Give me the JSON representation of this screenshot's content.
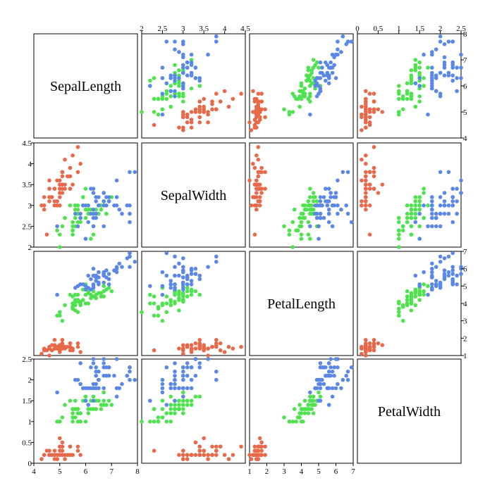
{
  "chart_data": {
    "type": "scatter-matrix",
    "title": "",
    "variables": [
      "SepalLength",
      "SepalWidth",
      "PetalLength",
      "PetalWidth"
    ],
    "axes": {
      "SepalLength": {
        "range": [
          4,
          8
        ],
        "ticks": [
          4,
          5,
          6,
          7,
          8
        ],
        "tick_labels": [
          "4",
          "5",
          "6",
          "7",
          "8"
        ]
      },
      "SepalWidth": {
        "range": [
          2,
          4.5
        ],
        "ticks": [
          2,
          2.5,
          3,
          3.5,
          4,
          4.5
        ],
        "tick_labels": [
          "2",
          "2.5",
          "3",
          "3.5",
          "4",
          "4.5"
        ]
      },
      "PetalLength": {
        "range": [
          1,
          7
        ],
        "ticks": [
          1,
          2,
          3,
          4,
          5,
          6,
          7
        ],
        "tick_labels": [
          "1",
          "2",
          "3",
          "4",
          "5",
          "6",
          "7"
        ]
      },
      "PetalWidth": {
        "range": [
          0,
          2.5
        ],
        "ticks": [
          0,
          0.5,
          1,
          1.5,
          2,
          2.5
        ],
        "tick_labels": [
          "0",
          "0.5",
          "1",
          "1.5",
          "2",
          "2.5"
        ]
      }
    },
    "grid": false,
    "legend": "none",
    "series": [
      {
        "color": "#e8684a",
        "points": [
          [
            5.1,
            3.5,
            1.4,
            0.2
          ],
          [
            4.9,
            3.0,
            1.4,
            0.2
          ],
          [
            4.7,
            3.2,
            1.3,
            0.2
          ],
          [
            4.6,
            3.1,
            1.5,
            0.2
          ],
          [
            5.0,
            3.6,
            1.4,
            0.2
          ],
          [
            5.4,
            3.9,
            1.7,
            0.4
          ],
          [
            4.6,
            3.4,
            1.4,
            0.3
          ],
          [
            5.0,
            3.4,
            1.5,
            0.2
          ],
          [
            4.4,
            2.9,
            1.4,
            0.2
          ],
          [
            4.9,
            3.1,
            1.5,
            0.1
          ],
          [
            5.4,
            3.7,
            1.5,
            0.2
          ],
          [
            4.8,
            3.4,
            1.6,
            0.2
          ],
          [
            4.8,
            3.0,
            1.4,
            0.1
          ],
          [
            4.3,
            3.0,
            1.1,
            0.1
          ],
          [
            5.8,
            4.0,
            1.2,
            0.2
          ],
          [
            5.7,
            4.4,
            1.5,
            0.4
          ],
          [
            5.4,
            3.9,
            1.3,
            0.4
          ],
          [
            5.1,
            3.5,
            1.4,
            0.3
          ],
          [
            5.7,
            3.8,
            1.7,
            0.3
          ],
          [
            5.1,
            3.8,
            1.5,
            0.3
          ],
          [
            5.4,
            3.4,
            1.7,
            0.2
          ],
          [
            5.1,
            3.7,
            1.5,
            0.4
          ],
          [
            4.6,
            3.6,
            1.0,
            0.2
          ],
          [
            5.1,
            3.3,
            1.7,
            0.5
          ],
          [
            4.8,
            3.4,
            1.9,
            0.2
          ],
          [
            5.0,
            3.0,
            1.6,
            0.2
          ],
          [
            5.0,
            3.4,
            1.6,
            0.4
          ],
          [
            5.2,
            3.5,
            1.5,
            0.2
          ],
          [
            5.2,
            3.4,
            1.4,
            0.2
          ],
          [
            4.7,
            3.2,
            1.6,
            0.2
          ],
          [
            4.8,
            3.1,
            1.6,
            0.2
          ],
          [
            5.4,
            3.4,
            1.5,
            0.4
          ],
          [
            5.2,
            4.1,
            1.5,
            0.1
          ],
          [
            5.5,
            4.2,
            1.4,
            0.2
          ],
          [
            4.9,
            3.1,
            1.5,
            0.2
          ],
          [
            5.0,
            3.2,
            1.2,
            0.2
          ],
          [
            5.5,
            3.5,
            1.3,
            0.2
          ],
          [
            4.9,
            3.6,
            1.4,
            0.1
          ],
          [
            4.4,
            3.0,
            1.3,
            0.2
          ],
          [
            5.1,
            3.4,
            1.5,
            0.2
          ],
          [
            5.0,
            3.5,
            1.3,
            0.3
          ],
          [
            4.5,
            2.3,
            1.3,
            0.3
          ],
          [
            4.4,
            3.2,
            1.3,
            0.2
          ],
          [
            5.0,
            3.5,
            1.6,
            0.6
          ],
          [
            5.1,
            3.8,
            1.9,
            0.4
          ],
          [
            4.8,
            3.0,
            1.4,
            0.3
          ],
          [
            5.1,
            3.8,
            1.6,
            0.2
          ],
          [
            4.6,
            3.2,
            1.4,
            0.2
          ],
          [
            5.3,
            3.7,
            1.5,
            0.2
          ],
          [
            5.0,
            3.3,
            1.4,
            0.2
          ]
        ]
      },
      {
        "color": "#4ee34e",
        "points": [
          [
            7.0,
            3.2,
            4.7,
            1.4
          ],
          [
            6.4,
            3.2,
            4.5,
            1.5
          ],
          [
            6.9,
            3.1,
            4.9,
            1.5
          ],
          [
            5.5,
            2.3,
            4.0,
            1.3
          ],
          [
            6.5,
            2.8,
            4.6,
            1.5
          ],
          [
            5.7,
            2.8,
            4.5,
            1.3
          ],
          [
            6.3,
            3.3,
            4.7,
            1.6
          ],
          [
            4.9,
            2.4,
            3.3,
            1.0
          ],
          [
            6.6,
            2.9,
            4.6,
            1.3
          ],
          [
            5.2,
            2.7,
            3.9,
            1.4
          ],
          [
            5.0,
            2.0,
            3.5,
            1.0
          ],
          [
            5.9,
            3.0,
            4.2,
            1.5
          ],
          [
            6.0,
            2.2,
            4.0,
            1.0
          ],
          [
            6.1,
            2.9,
            4.7,
            1.4
          ],
          [
            5.6,
            2.9,
            3.6,
            1.3
          ],
          [
            6.7,
            3.1,
            4.4,
            1.4
          ],
          [
            5.6,
            3.0,
            4.5,
            1.5
          ],
          [
            5.8,
            2.7,
            4.1,
            1.0
          ],
          [
            6.2,
            2.2,
            4.5,
            1.5
          ],
          [
            5.6,
            2.5,
            3.9,
            1.1
          ],
          [
            5.9,
            3.2,
            4.8,
            1.8
          ],
          [
            6.1,
            2.8,
            4.0,
            1.3
          ],
          [
            6.3,
            2.5,
            4.9,
            1.5
          ],
          [
            6.1,
            2.8,
            4.7,
            1.2
          ],
          [
            6.4,
            2.9,
            4.3,
            1.3
          ],
          [
            6.6,
            3.0,
            4.4,
            1.4
          ],
          [
            6.8,
            2.8,
            4.8,
            1.4
          ],
          [
            6.7,
            3.0,
            5.0,
            1.7
          ],
          [
            6.0,
            2.9,
            4.5,
            1.5
          ],
          [
            5.7,
            2.6,
            3.5,
            1.0
          ],
          [
            5.5,
            2.4,
            3.8,
            1.1
          ],
          [
            5.5,
            2.4,
            3.7,
            1.0
          ],
          [
            5.8,
            2.7,
            3.9,
            1.2
          ],
          [
            6.0,
            2.7,
            5.1,
            1.6
          ],
          [
            5.4,
            3.0,
            4.5,
            1.5
          ],
          [
            6.0,
            3.4,
            4.5,
            1.6
          ],
          [
            6.7,
            3.1,
            4.7,
            1.5
          ],
          [
            6.3,
            2.3,
            4.4,
            1.3
          ],
          [
            5.6,
            3.0,
            4.1,
            1.3
          ],
          [
            5.5,
            2.5,
            4.0,
            1.3
          ],
          [
            5.5,
            2.6,
            4.4,
            1.2
          ],
          [
            6.1,
            3.0,
            4.6,
            1.4
          ],
          [
            5.8,
            2.6,
            4.0,
            1.2
          ],
          [
            5.0,
            2.3,
            3.3,
            1.0
          ],
          [
            5.6,
            2.7,
            4.2,
            1.3
          ],
          [
            5.7,
            3.0,
            4.2,
            1.2
          ],
          [
            5.7,
            2.9,
            4.2,
            1.3
          ],
          [
            6.2,
            2.9,
            4.3,
            1.3
          ],
          [
            5.1,
            2.5,
            3.0,
            1.1
          ],
          [
            5.7,
            2.8,
            4.1,
            1.3
          ]
        ]
      },
      {
        "color": "#5b87e6",
        "points": [
          [
            6.3,
            3.3,
            6.0,
            2.5
          ],
          [
            5.8,
            2.7,
            5.1,
            1.9
          ],
          [
            7.1,
            3.0,
            5.9,
            2.1
          ],
          [
            6.3,
            2.9,
            5.6,
            1.8
          ],
          [
            6.5,
            3.0,
            5.8,
            2.2
          ],
          [
            7.6,
            3.0,
            6.6,
            2.1
          ],
          [
            4.9,
            2.5,
            4.5,
            1.7
          ],
          [
            7.3,
            2.9,
            6.3,
            1.8
          ],
          [
            6.7,
            2.5,
            5.8,
            1.8
          ],
          [
            7.2,
            3.6,
            6.1,
            2.5
          ],
          [
            6.5,
            3.2,
            5.1,
            2.0
          ],
          [
            6.4,
            2.7,
            5.3,
            1.9
          ],
          [
            6.8,
            3.0,
            5.5,
            2.1
          ],
          [
            5.7,
            2.5,
            5.0,
            2.0
          ],
          [
            5.8,
            2.8,
            5.1,
            2.4
          ],
          [
            6.4,
            3.2,
            5.3,
            2.3
          ],
          [
            6.5,
            3.0,
            5.5,
            1.8
          ],
          [
            7.7,
            3.8,
            6.7,
            2.2
          ],
          [
            7.7,
            2.6,
            6.9,
            2.3
          ],
          [
            6.0,
            2.2,
            5.0,
            1.5
          ],
          [
            6.9,
            3.2,
            5.7,
            2.3
          ],
          [
            5.6,
            2.8,
            4.9,
            2.0
          ],
          [
            7.7,
            2.8,
            6.7,
            2.0
          ],
          [
            6.3,
            2.7,
            4.9,
            1.8
          ],
          [
            6.7,
            3.3,
            5.7,
            2.1
          ],
          [
            7.2,
            3.2,
            6.0,
            1.8
          ],
          [
            6.2,
            2.8,
            4.8,
            1.8
          ],
          [
            6.1,
            3.0,
            4.9,
            1.8
          ],
          [
            6.4,
            2.8,
            5.6,
            2.1
          ],
          [
            7.2,
            3.0,
            5.8,
            1.6
          ],
          [
            7.4,
            2.8,
            6.1,
            1.9
          ],
          [
            7.9,
            3.8,
            6.4,
            2.0
          ],
          [
            6.4,
            2.8,
            5.6,
            2.2
          ],
          [
            6.3,
            2.8,
            5.1,
            1.5
          ],
          [
            6.1,
            2.6,
            5.6,
            1.4
          ],
          [
            7.7,
            3.0,
            6.1,
            2.3
          ],
          [
            6.3,
            3.4,
            5.6,
            2.4
          ],
          [
            6.4,
            3.1,
            5.5,
            1.8
          ],
          [
            6.0,
            3.0,
            4.8,
            1.8
          ],
          [
            6.9,
            3.1,
            5.4,
            2.1
          ],
          [
            6.7,
            3.1,
            5.6,
            2.4
          ],
          [
            6.9,
            3.1,
            5.1,
            2.3
          ],
          [
            5.8,
            2.7,
            5.1,
            1.9
          ],
          [
            6.8,
            3.2,
            5.9,
            2.3
          ],
          [
            6.7,
            3.3,
            5.7,
            2.5
          ],
          [
            6.7,
            3.0,
            5.2,
            2.3
          ],
          [
            6.3,
            2.5,
            5.0,
            1.9
          ],
          [
            6.5,
            3.0,
            5.2,
            2.0
          ],
          [
            6.2,
            3.4,
            5.4,
            2.3
          ],
          [
            5.9,
            3.0,
            5.1,
            1.8
          ]
        ]
      }
    ]
  }
}
